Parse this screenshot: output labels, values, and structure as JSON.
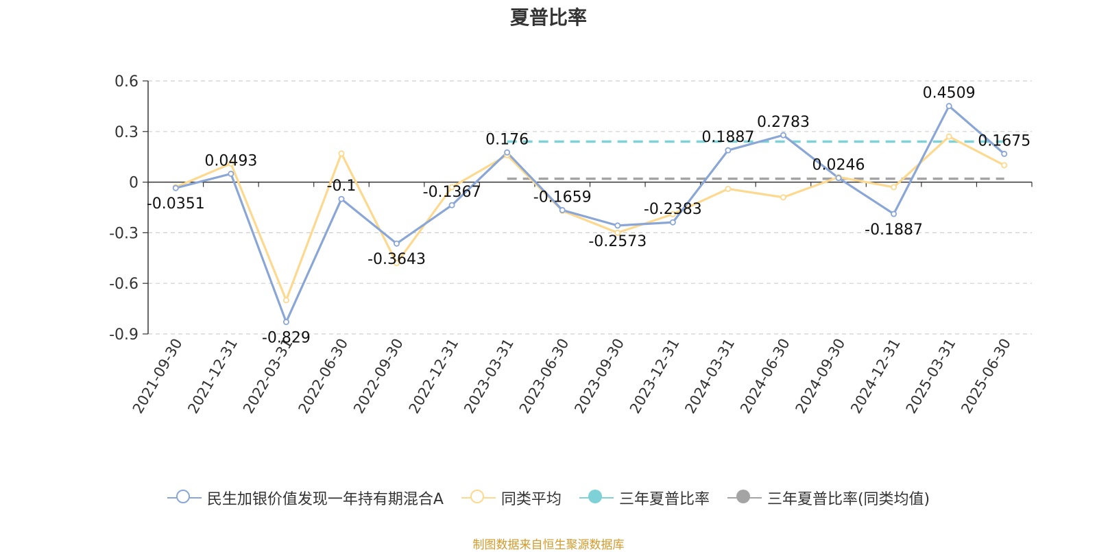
{
  "chart_data": {
    "type": "line",
    "title": "夏普比率",
    "categories": [
      "2021-09-30",
      "2021-12-31",
      "2022-03-31",
      "2022-06-30",
      "2022-09-30",
      "2022-12-31",
      "2023-03-31",
      "2023-06-30",
      "2023-09-30",
      "2023-12-31",
      "2024-03-31",
      "2024-06-30",
      "2024-09-30",
      "2024-12-31",
      "2025-03-31",
      "2025-06-30"
    ],
    "series": [
      {
        "name": "民生加银价值发现一年持有期混合A",
        "color": "#8aa6d6",
        "values": [
          -0.0351,
          0.0493,
          -0.829,
          -0.1,
          -0.3643,
          -0.1367,
          0.176,
          -0.1659,
          -0.2573,
          -0.2383,
          0.1887,
          0.2783,
          0.0246,
          -0.1887,
          0.4509,
          0.1675
        ],
        "labels": [
          "-0.0351",
          "0.0493",
          "-0.829",
          "-0.1",
          "-0.3643",
          "-0.1367",
          "0.176",
          "-0.1659",
          "-0.2573",
          "-0.2383",
          "0.1887",
          "0.2783",
          "0.0246",
          "-0.1887",
          "0.4509",
          "0.1675"
        ]
      },
      {
        "name": "同类平均",
        "color": "#fcd98e",
        "values": [
          -0.03,
          0.11,
          -0.7,
          0.17,
          -0.48,
          -0.03,
          0.16,
          -0.17,
          -0.3,
          -0.19,
          -0.04,
          -0.09,
          0.03,
          -0.03,
          0.27,
          0.1
        ]
      },
      {
        "name": "三年夏普比率",
        "color": "#7ed1d6",
        "style": "dashed",
        "value": 0.24,
        "from": "2023-03-31",
        "to": "2025-06-30"
      },
      {
        "name": "三年夏普比率(同类均值)",
        "color": "#a4a4a4",
        "style": "dashed",
        "value": 0.02,
        "from": "2023-03-31",
        "to": "2025-06-30"
      }
    ],
    "ylim": [
      -0.9,
      0.6
    ],
    "yticks": [
      0.6,
      0.3,
      0,
      -0.3,
      -0.6,
      -0.9
    ],
    "ytick_labels": [
      "0.6",
      "0.3",
      "0",
      "-0.3",
      "-0.6",
      "-0.9"
    ],
    "grid": true,
    "legend_position": "bottom"
  },
  "footer": "制图数据来自恒生聚源数据库"
}
